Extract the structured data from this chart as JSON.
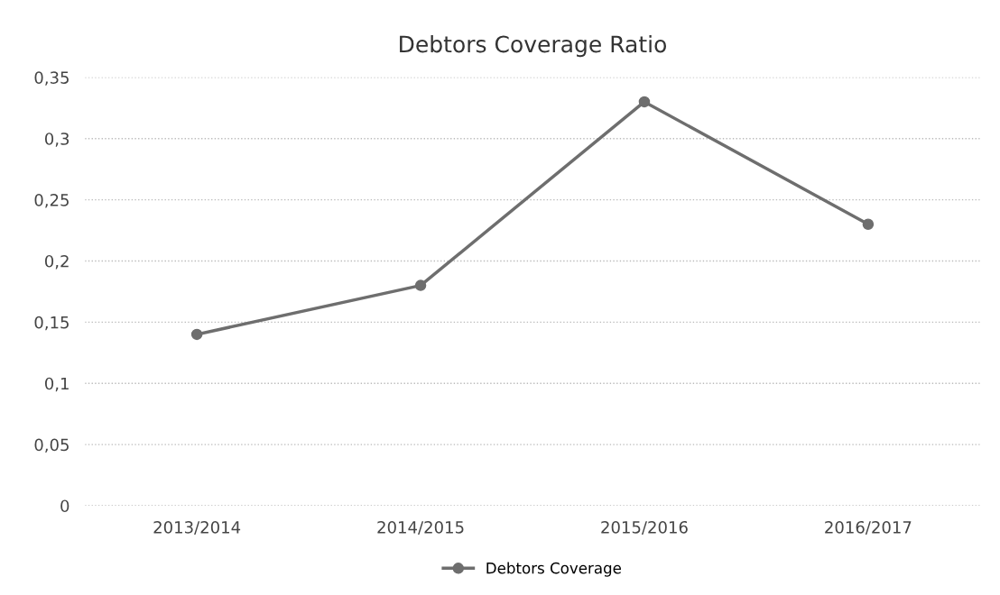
{
  "chart_data": {
    "type": "line",
    "title": "Debtors Coverage Ratio",
    "categories": [
      "2013/2014",
      "2014/2015",
      "2015/2016",
      "2016/2017"
    ],
    "series": [
      {
        "name": "Debtors Coverage",
        "color": "#6e6e6e",
        "values": [
          0.14,
          0.18,
          0.33,
          0.23
        ]
      }
    ],
    "ylim": [
      0,
      0.35
    ],
    "yticks": [
      {
        "value": 0,
        "label": "0"
      },
      {
        "value": 0.05,
        "label": "0,05"
      },
      {
        "value": 0.1,
        "label": "0,1"
      },
      {
        "value": 0.15,
        "label": "0,15"
      },
      {
        "value": 0.2,
        "label": "0,2"
      },
      {
        "value": 0.25,
        "label": "0,25"
      },
      {
        "value": 0.3,
        "label": "0,3"
      },
      {
        "value": 0.35,
        "label": "0,35"
      }
    ],
    "grid": "y",
    "legend": "bottom",
    "marker": "circle",
    "line_style": "solid"
  }
}
